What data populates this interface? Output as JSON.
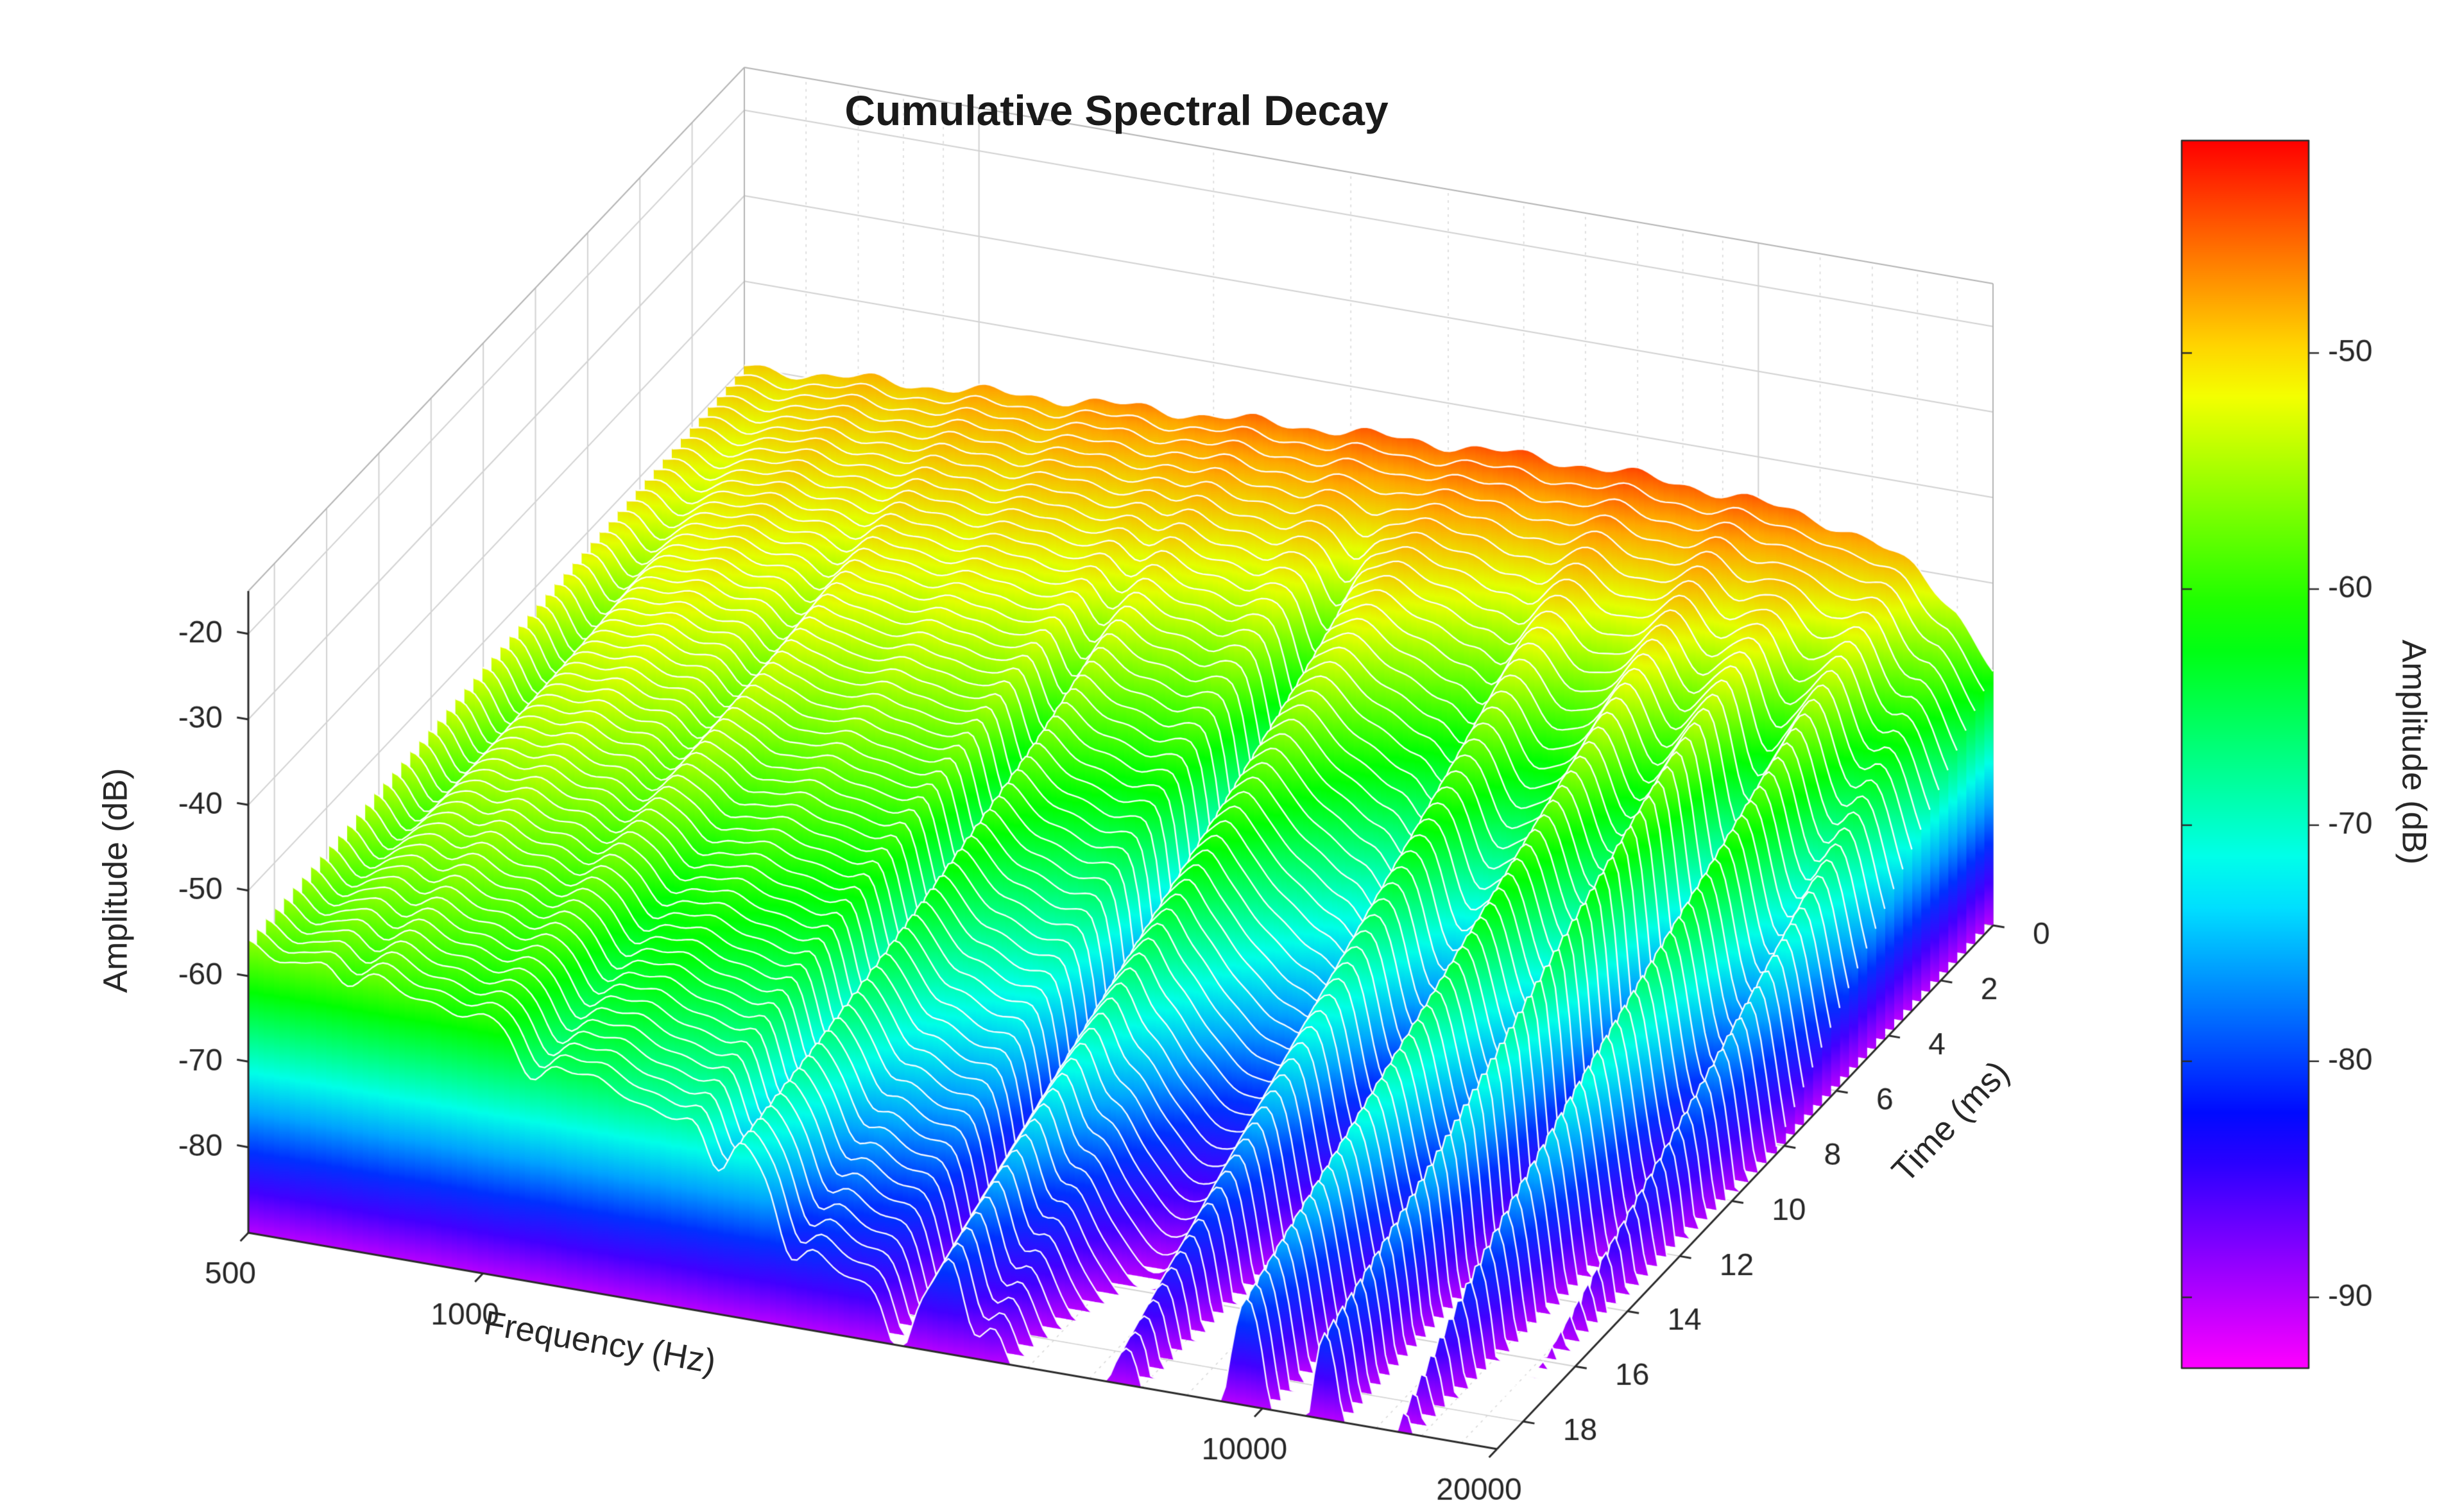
{
  "chart_data": {
    "type": "surface",
    "title": "Cumulative Spectral Decay",
    "x_axis": {
      "label": "Frequency (Hz)",
      "scale": "log",
      "min": 500,
      "max": 20000,
      "tick_values": [
        500,
        1000,
        10000,
        20000
      ],
      "tick_labels": [
        "500",
        "1000",
        "10000",
        "20000"
      ],
      "minor_ticks": [
        600,
        700,
        800,
        900,
        2000,
        3000,
        4000,
        5000,
        6000,
        7000,
        8000,
        9000,
        12000,
        14000,
        16000,
        18000
      ]
    },
    "y_axis": {
      "label": "Time (ms)",
      "min": 0,
      "max": 19,
      "tick_values": [
        0,
        2,
        4,
        6,
        8,
        10,
        12,
        14,
        16,
        18
      ],
      "tick_labels": [
        "0",
        "2",
        "4",
        "6",
        "8",
        "10",
        "12",
        "14",
        "16",
        "18"
      ]
    },
    "z_axis": {
      "label": "Amplitude (dB)",
      "min": -90,
      "max": -15,
      "tick_values": [
        -80,
        -70,
        -60,
        -50,
        -40,
        -30,
        -20
      ],
      "tick_labels": [
        "-80",
        "-70",
        "-60",
        "-50",
        "-40",
        "-30",
        "-20"
      ]
    },
    "colorbar": {
      "label": "Amplitude (dB)",
      "tick_values": [
        -50,
        -60,
        -70,
        -80,
        -90
      ],
      "tick_labels": [
        "-50",
        "-60",
        "-70",
        "-80",
        "-90"
      ],
      "value_top": -41,
      "value_bottom": -93,
      "hue_top_deg": 0,
      "hue_bottom_deg": 300
    },
    "surface_model": {
      "floor_db": -90,
      "top_clip_db": -42,
      "time_start_ms": 0,
      "time_end_ms": 19,
      "n_time_slices": 56,
      "freq_points_hz": [
        500,
        700,
        1000,
        1400,
        2000,
        2800,
        4000,
        5600,
        8000,
        10000,
        12000,
        14000,
        16000,
        18000,
        20000
      ],
      "level_db_at_t0": [
        -50,
        -49,
        -48,
        -47,
        -46.2,
        -45.4,
        -44.8,
        -44.4,
        -44.6,
        -45.2,
        -46,
        -47.5,
        -50,
        -54,
        -60
      ],
      "decay_db_per_ms": [
        0.3,
        0.45,
        0.65,
        0.95,
        1.4,
        1.9,
        2.4,
        2.9,
        3.3,
        3.5,
        3.7,
        3.85,
        4.0,
        4.1,
        4.2
      ],
      "ripple": [
        [
          0.5,
          38,
          0.0
        ],
        [
          0.35,
          90,
          1.2
        ]
      ],
      "resonances": [
        [
          3.3,
          0.06,
          0.25
        ],
        [
          3.62,
          0.05,
          0.35
        ],
        [
          3.83,
          0.05,
          0.3
        ],
        [
          3.98,
          0.045,
          0.5
        ],
        [
          4.09,
          0.04,
          0.62
        ],
        [
          4.19,
          0.035,
          0.58
        ],
        [
          4.27,
          0.03,
          0.5
        ]
      ],
      "notch": {
        "ka": 55,
        "pa": 0.4,
        "da": 0.12,
        "kb": 23,
        "pb": 2.0,
        "db": -0.08,
        "power": 2.2,
        "depth_db": 28,
        "ramp_ms": 8,
        "mask_base": 0.15,
        "mask_gauss": [
          [
            3.47,
            0.13,
            1.0
          ],
          [
            3.72,
            0.09,
            0.5
          ]
        ],
        "mask_shelf": {
          "center": 4.02,
          "width": 0.07,
          "amount": 0.85
        }
      }
    },
    "style": {
      "background": "#ffffff",
      "axis_color": "#2a2a2a",
      "grid_major": "#d2d2d2",
      "grid_minor": "#d9d9d9",
      "box_edge": "#b4b4b4",
      "slice_line": "#ffffff",
      "tick_label_color": "#262626"
    }
  }
}
